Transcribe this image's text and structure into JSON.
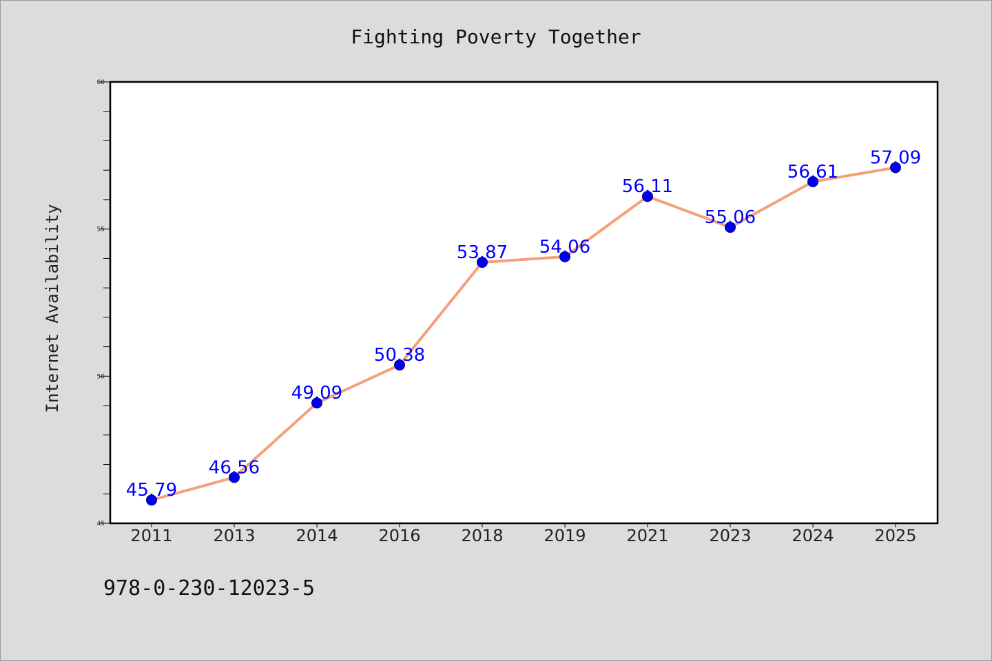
{
  "chart_data": {
    "type": "line",
    "title": "Fighting Poverty Together",
    "xlabel": "",
    "ylabel": "Internet Availability",
    "categories": [
      "2011",
      "2013",
      "2014",
      "2016",
      "2018",
      "2019",
      "2021",
      "2023",
      "2024",
      "2025"
    ],
    "series": [
      {
        "values": [
          45.79,
          46.56,
          49.09,
          50.38,
          53.87,
          54.06,
          56.11,
          55.06,
          56.61,
          57.09
        ],
        "data_labels": [
          "45.79",
          "46.56",
          "49.09",
          "50.38",
          "53.87",
          "54.06",
          "56.11",
          "55.06",
          "56.61",
          "57.09"
        ],
        "line_color": "#f4a07a",
        "marker_color": "#0000ee",
        "label_color": "#0000ff"
      }
    ],
    "ylim": [
      45,
      60
    ],
    "yticks": [
      "45",
      "50",
      "55",
      "60"
    ],
    "grid": false,
    "legend": "none"
  },
  "footer_text": "978-0-230-12023-5",
  "colors": {
    "background": "#dcdcdc",
    "plot_background": "#ffffff"
  }
}
